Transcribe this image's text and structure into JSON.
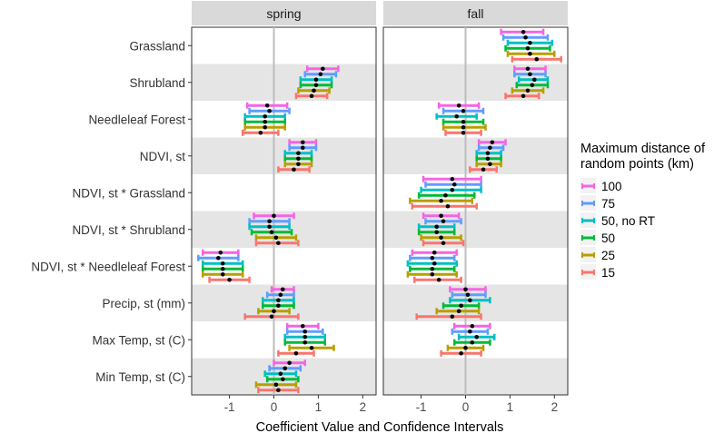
{
  "chart_data": {
    "type": "errorbar",
    "xlabel": "Coefficient Value and Confidence Intervals",
    "xlim": [
      -1.85,
      2.3
    ],
    "xticks": [
      -1,
      0,
      1,
      2
    ],
    "xtick_labels": [
      "-1",
      "0",
      "1",
      "2"
    ],
    "reference_line": 0,
    "legend_title": "Maximum distance of random points (km)",
    "legend_title_lines": [
      "Maximum distance of",
      "random points (km)"
    ],
    "series": [
      {
        "name": "100",
        "color": "#F564E3"
      },
      {
        "name": "75",
        "color": "#619CFF"
      },
      {
        "name": "50, no RT",
        "color": "#00BFC4"
      },
      {
        "name": "50",
        "color": "#00BA38"
      },
      {
        "name": "25",
        "color": "#B79F00"
      },
      {
        "name": "15",
        "color": "#F8766D"
      }
    ],
    "categories": [
      "Grassland",
      "Shrubland",
      "Needleleaf Forest",
      "NDVI, st",
      "NDVI, st * Grassland",
      "NDVI, st * Shrubland",
      "NDVI, st * Needleleaf Forest",
      "Precip, st (mm)",
      "Max Temp, st (C)",
      "Min Temp, st (C)"
    ],
    "panels": [
      {
        "title": "spring",
        "data": [
          [],
          [
            [
              1.1,
              0.75,
              1.45
            ],
            [
              1.05,
              0.7,
              1.4
            ],
            [
              0.95,
              0.6,
              1.3
            ],
            [
              0.95,
              0.6,
              1.3
            ],
            [
              0.9,
              0.55,
              1.25
            ],
            [
              0.85,
              0.5,
              1.2
            ]
          ],
          [
            [
              -0.15,
              -0.6,
              0.3
            ],
            [
              -0.1,
              -0.55,
              0.35
            ],
            [
              -0.2,
              -0.65,
              0.25
            ],
            [
              -0.2,
              -0.65,
              0.25
            ],
            [
              -0.2,
              -0.65,
              0.25
            ],
            [
              -0.3,
              -0.7,
              0.1
            ]
          ],
          [
            [
              0.65,
              0.35,
              0.95
            ],
            [
              0.65,
              0.35,
              0.95
            ],
            [
              0.55,
              0.25,
              0.85
            ],
            [
              0.55,
              0.25,
              0.85
            ],
            [
              0.55,
              0.25,
              0.85
            ],
            [
              0.45,
              0.1,
              0.8
            ]
          ],
          [],
          [
            [
              0.0,
              -0.45,
              0.45
            ],
            [
              -0.1,
              -0.55,
              0.35
            ],
            [
              -0.1,
              -0.55,
              0.35
            ],
            [
              -0.05,
              -0.5,
              0.4
            ],
            [
              0.05,
              -0.4,
              0.5
            ],
            [
              0.1,
              -0.4,
              0.55
            ]
          ],
          [
            [
              -1.2,
              -1.6,
              -0.8
            ],
            [
              -1.25,
              -1.7,
              -0.8
            ],
            [
              -1.15,
              -1.6,
              -0.7
            ],
            [
              -1.15,
              -1.6,
              -0.7
            ],
            [
              -1.15,
              -1.6,
              -0.7
            ],
            [
              -1.0,
              -1.45,
              -0.55
            ]
          ],
          [
            [
              0.2,
              -0.05,
              0.45
            ],
            [
              0.15,
              -0.15,
              0.45
            ],
            [
              0.1,
              -0.25,
              0.45
            ],
            [
              0.1,
              -0.25,
              0.45
            ],
            [
              0.0,
              -0.35,
              0.35
            ],
            [
              -0.05,
              -0.65,
              0.55
            ]
          ],
          [
            [
              0.65,
              0.3,
              1.0
            ],
            [
              0.7,
              0.3,
              1.1
            ],
            [
              0.7,
              0.25,
              1.15
            ],
            [
              0.7,
              0.25,
              1.15
            ],
            [
              0.85,
              0.35,
              1.35
            ],
            [
              0.5,
              0.1,
              0.9
            ]
          ],
          [
            [
              0.35,
              0.0,
              0.7
            ],
            [
              0.25,
              -0.1,
              0.6
            ],
            [
              0.15,
              -0.2,
              0.5
            ],
            [
              0.2,
              -0.15,
              0.55
            ],
            [
              0.05,
              -0.4,
              0.5
            ],
            [
              0.1,
              -0.35,
              0.55
            ]
          ]
        ]
      },
      {
        "title": "fall",
        "data": [
          [
            [
              1.3,
              0.8,
              1.75
            ],
            [
              1.35,
              0.85,
              1.85
            ],
            [
              1.45,
              0.95,
              1.95
            ],
            [
              1.4,
              0.9,
              1.9
            ],
            [
              1.45,
              0.95,
              2.0
            ],
            [
              1.6,
              1.05,
              2.15
            ]
          ],
          [
            [
              1.4,
              1.1,
              1.8
            ],
            [
              1.45,
              1.1,
              1.8
            ],
            [
              1.55,
              1.2,
              1.85
            ],
            [
              1.5,
              1.15,
              1.85
            ],
            [
              1.4,
              1.05,
              1.75
            ],
            [
              1.3,
              0.9,
              1.65
            ]
          ],
          [
            [
              -0.15,
              -0.6,
              0.3
            ],
            [
              -0.05,
              -0.5,
              0.4
            ],
            [
              -0.2,
              -0.65,
              0.25
            ],
            [
              -0.05,
              -0.5,
              0.4
            ],
            [
              -0.05,
              -0.5,
              0.45
            ],
            [
              -0.05,
              -0.45,
              0.35
            ]
          ],
          [
            [
              0.6,
              0.3,
              0.9
            ],
            [
              0.55,
              0.3,
              0.85
            ],
            [
              0.5,
              0.25,
              0.8
            ],
            [
              0.5,
              0.25,
              0.8
            ],
            [
              0.55,
              0.25,
              0.8
            ],
            [
              0.4,
              0.1,
              0.7
            ]
          ],
          [
            [
              -0.3,
              -0.95,
              0.35
            ],
            [
              -0.25,
              -0.9,
              0.35
            ],
            [
              -0.3,
              -1.0,
              0.35
            ],
            [
              -0.45,
              -1.05,
              0.2
            ],
            [
              -0.55,
              -1.25,
              0.15
            ],
            [
              -0.4,
              -1.2,
              0.25
            ]
          ],
          [
            [
              -0.55,
              -0.95,
              -0.15
            ],
            [
              -0.5,
              -0.9,
              -0.1
            ],
            [
              -0.65,
              -1.05,
              -0.25
            ],
            [
              -0.65,
              -1.05,
              -0.25
            ],
            [
              -0.55,
              -1.0,
              -0.1
            ],
            [
              -0.5,
              -0.95,
              -0.05
            ]
          ],
          [
            [
              -0.7,
              -1.2,
              -0.2
            ],
            [
              -0.75,
              -1.25,
              -0.25
            ],
            [
              -0.7,
              -1.3,
              -0.2
            ],
            [
              -0.75,
              -1.25,
              -0.25
            ],
            [
              -0.75,
              -1.3,
              -0.2
            ],
            [
              -0.6,
              -1.15,
              -0.1
            ]
          ],
          [
            [
              0.0,
              -0.35,
              0.45
            ],
            [
              0.05,
              -0.3,
              0.45
            ],
            [
              0.1,
              -0.35,
              0.55
            ],
            [
              -0.1,
              -0.5,
              0.3
            ],
            [
              -0.15,
              -0.65,
              0.3
            ],
            [
              -0.3,
              -1.1,
              0.35
            ]
          ],
          [
            [
              0.15,
              -0.25,
              0.55
            ],
            [
              0.1,
              -0.3,
              0.5
            ],
            [
              0.25,
              -0.15,
              0.65
            ],
            [
              0.15,
              -0.25,
              0.55
            ],
            [
              0.0,
              -0.4,
              0.4
            ],
            [
              -0.1,
              -0.55,
              0.35
            ]
          ],
          []
        ]
      }
    ]
  }
}
